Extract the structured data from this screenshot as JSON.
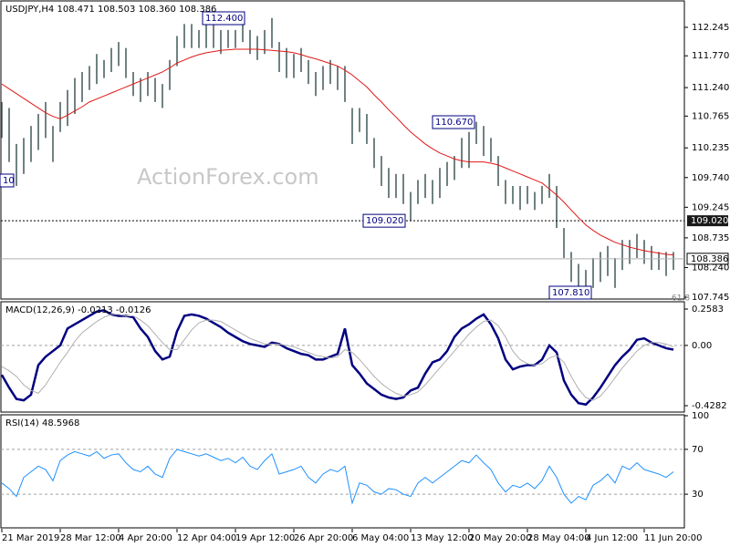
{
  "chart_data": [
    {
      "type": "ohlc",
      "title": "USDJPY,H4  108.471 108.503 108.360 108.386",
      "watermark": "ActionForex.com",
      "color": "#405858",
      "high": [
        111.0,
        110.9,
        110.3,
        110.4,
        110.6,
        110.8,
        111.0,
        110.6,
        111.0,
        111.2,
        111.4,
        111.5,
        111.6,
        111.8,
        111.7,
        111.9,
        112.0,
        111.9,
        111.5,
        111.4,
        111.5,
        111.4,
        111.3,
        111.7,
        112.1,
        112.3,
        112.3,
        112.2,
        112.3,
        112.3,
        112.2,
        112.2,
        112.2,
        112.3,
        112.2,
        112.1,
        112.2,
        112.4,
        112.0,
        111.9,
        111.8,
        111.9,
        111.7,
        111.5,
        111.6,
        111.7,
        111.6,
        111.6,
        110.9,
        110.9,
        110.8,
        110.4,
        110.1,
        109.9,
        109.8,
        109.8,
        109.5,
        109.7,
        109.8,
        109.7,
        109.9,
        110.0,
        110.1,
        110.4,
        110.5,
        110.67,
        110.6,
        110.4,
        110.1,
        109.7,
        109.6,
        109.6,
        109.6,
        109.5,
        109.6,
        109.8,
        109.6,
        108.9,
        108.5,
        108.3,
        108.2,
        108.4,
        108.5,
        108.6,
        108.4,
        108.7,
        108.7,
        108.8,
        108.7,
        108.6,
        108.5,
        108.5,
        108.5
      ],
      "low": [
        110.4,
        110.0,
        109.6,
        109.8,
        110.0,
        110.2,
        110.4,
        110.0,
        110.5,
        110.6,
        110.8,
        111.0,
        111.2,
        111.3,
        111.4,
        111.5,
        111.6,
        111.4,
        111.1,
        111.0,
        111.1,
        111.0,
        110.9,
        111.2,
        111.6,
        111.9,
        111.9,
        111.9,
        111.9,
        111.9,
        111.8,
        111.9,
        111.9,
        112.0,
        111.8,
        111.7,
        111.8,
        111.9,
        111.5,
        111.4,
        111.4,
        111.5,
        111.3,
        111.1,
        111.2,
        111.3,
        111.2,
        111.0,
        110.3,
        110.5,
        110.3,
        109.9,
        109.6,
        109.4,
        109.4,
        109.3,
        109.02,
        109.3,
        109.4,
        109.3,
        109.4,
        109.6,
        109.7,
        109.9,
        109.9,
        110.3,
        110.1,
        110.0,
        109.6,
        109.3,
        109.3,
        109.2,
        109.3,
        109.2,
        109.3,
        109.4,
        108.9,
        108.4,
        108.0,
        107.9,
        107.81,
        107.9,
        108.0,
        108.1,
        107.9,
        108.2,
        108.3,
        108.4,
        108.3,
        108.2,
        108.2,
        108.1,
        108.2
      ],
      "series": [
        {
          "color": "#e01818",
          "values": [
            111.3,
            111.22,
            111.14,
            111.06,
            110.98,
            110.9,
            110.82,
            110.76,
            110.72,
            110.78,
            110.85,
            110.92,
            111.0,
            111.05,
            111.1,
            111.15,
            111.2,
            111.25,
            111.3,
            111.35,
            111.4,
            111.45,
            111.5,
            111.57,
            111.65,
            111.7,
            111.75,
            111.79,
            111.82,
            111.84,
            111.86,
            111.87,
            111.88,
            111.88,
            111.88,
            111.88,
            111.87,
            111.86,
            111.85,
            111.84,
            111.82,
            111.79,
            111.75,
            111.72,
            111.68,
            111.64,
            111.6,
            111.53,
            111.45,
            111.35,
            111.25,
            111.12,
            111.0,
            110.87,
            110.75,
            110.62,
            110.5,
            110.4,
            110.3,
            110.22,
            110.15,
            110.1,
            110.05,
            110.02,
            110.0,
            110.0,
            110.0,
            109.98,
            109.95,
            109.9,
            109.85,
            109.8,
            109.75,
            109.7,
            109.65,
            109.55,
            109.45,
            109.33,
            109.2,
            109.07,
            108.95,
            108.86,
            108.78,
            108.72,
            108.66,
            108.62,
            108.58,
            108.55,
            108.52,
            108.5,
            108.48,
            108.46,
            108.45
          ]
        }
      ],
      "hline": {
        "value": 109.02,
        "label": "109.020"
      },
      "last": {
        "value": 108.386,
        "label": "108.386"
      },
      "annotations": [
        "112.400",
        "110.670",
        "107.810",
        "10",
        "61.8"
      ],
      "ylim": [
        107.715,
        112.67
      ],
      "yticks": [
        {
          "value": 112.245,
          "label": "112.245"
        },
        {
          "value": 111.77,
          "label": "111.770"
        },
        {
          "value": 111.24,
          "label": "111.240"
        },
        {
          "value": 110.765,
          "label": "110.765"
        },
        {
          "value": 110.235,
          "label": "110.235"
        },
        {
          "value": 109.74,
          "label": "109.740"
        },
        {
          "value": 109.245,
          "label": "109.245"
        },
        {
          "value": 108.735,
          "label": "108.735"
        },
        {
          "value": 108.24,
          "label": "108.240"
        },
        {
          "value": 107.745,
          "label": "107.745"
        }
      ]
    },
    {
      "type": "line",
      "title": "MACD(12,26,9) -0.0213 -0.0126",
      "series": [
        {
          "color": "#000080",
          "width": 2.5,
          "values": [
            -0.21,
            -0.3,
            -0.38,
            -0.39,
            -0.35,
            -0.14,
            -0.08,
            -0.04,
            0.0,
            0.12,
            0.15,
            0.18,
            0.21,
            0.24,
            0.25,
            0.22,
            0.21,
            0.21,
            0.2,
            0.12,
            0.06,
            -0.04,
            -0.1,
            -0.08,
            0.1,
            0.21,
            0.22,
            0.21,
            0.19,
            0.16,
            0.13,
            0.09,
            0.06,
            0.03,
            0.01,
            0.0,
            -0.01,
            0.02,
            0.01,
            -0.02,
            -0.04,
            -0.06,
            -0.07,
            -0.1,
            -0.1,
            -0.08,
            -0.06,
            0.12,
            -0.14,
            -0.2,
            -0.27,
            -0.31,
            -0.35,
            -0.37,
            -0.38,
            -0.37,
            -0.32,
            -0.3,
            -0.2,
            -0.12,
            -0.1,
            -0.04,
            0.06,
            0.12,
            0.15,
            0.19,
            0.22,
            0.15,
            0.05,
            -0.1,
            -0.17,
            -0.15,
            -0.14,
            -0.14,
            -0.1,
            0.0,
            -0.05,
            -0.25,
            -0.35,
            -0.41,
            -0.42,
            -0.37,
            -0.3,
            -0.22,
            -0.14,
            -0.08,
            -0.03,
            0.04,
            0.05,
            0.02,
            0.0,
            -0.02,
            -0.03
          ]
        },
        {
          "color": "#b0b0b0",
          "width": 1,
          "values": [
            -0.15,
            -0.18,
            -0.22,
            -0.28,
            -0.32,
            -0.34,
            -0.28,
            -0.2,
            -0.12,
            -0.05,
            0.03,
            0.09,
            0.13,
            0.17,
            0.2,
            0.22,
            0.22,
            0.21,
            0.21,
            0.18,
            0.14,
            0.08,
            0.02,
            -0.03,
            -0.03,
            0.04,
            0.11,
            0.16,
            0.18,
            0.18,
            0.17,
            0.14,
            0.11,
            0.08,
            0.05,
            0.03,
            0.01,
            0.01,
            0.01,
            0.0,
            -0.01,
            -0.03,
            -0.05,
            -0.07,
            -0.08,
            -0.09,
            -0.08,
            -0.03,
            -0.05,
            -0.1,
            -0.16,
            -0.22,
            -0.27,
            -0.31,
            -0.34,
            -0.36,
            -0.35,
            -0.33,
            -0.28,
            -0.22,
            -0.16,
            -0.1,
            -0.04,
            0.02,
            0.08,
            0.13,
            0.17,
            0.18,
            0.14,
            0.06,
            -0.04,
            -0.1,
            -0.13,
            -0.14,
            -0.13,
            -0.09,
            -0.07,
            -0.12,
            -0.22,
            -0.31,
            -0.37,
            -0.39,
            -0.36,
            -0.3,
            -0.23,
            -0.16,
            -0.1,
            -0.04,
            0.0,
            0.02,
            0.02,
            0.01,
            -0.01
          ]
        }
      ],
      "levels": [
        0
      ],
      "ylim": [
        -0.4735,
        0.3036
      ],
      "yticks": [
        0.2583,
        {
          "value": 0,
          "label": "0.00"
        },
        -0.4282
      ]
    },
    {
      "type": "line",
      "title": "RSI(14) 48.5968",
      "series": [
        {
          "color": "#1e90ff",
          "width": 1,
          "values": [
            40,
            35,
            28,
            45,
            50,
            55,
            52,
            42,
            60,
            65,
            68,
            66,
            64,
            68,
            62,
            65,
            66,
            58,
            52,
            50,
            55,
            48,
            45,
            62,
            70,
            68,
            66,
            64,
            66,
            63,
            60,
            62,
            58,
            63,
            55,
            52,
            60,
            66,
            48,
            50,
            52,
            55,
            45,
            40,
            48,
            52,
            50,
            55,
            22,
            40,
            38,
            32,
            30,
            35,
            34,
            30,
            28,
            40,
            45,
            40,
            45,
            50,
            55,
            60,
            58,
            65,
            58,
            52,
            40,
            32,
            38,
            36,
            40,
            35,
            42,
            55,
            45,
            30,
            22,
            28,
            25,
            38,
            42,
            48,
            40,
            55,
            52,
            58,
            52,
            50,
            48,
            45,
            50
          ]
        }
      ],
      "levels": [
        70,
        30
      ],
      "ylim": [
        0,
        100
      ],
      "yticks": [
        100,
        70,
        30
      ],
      "categories": [
        "21 Mar 2019",
        null,
        null,
        null,
        null,
        null,
        null,
        null,
        "28 Mar 12:00",
        null,
        null,
        null,
        null,
        null,
        null,
        null,
        "4 Apr 20:00",
        null,
        null,
        null,
        null,
        null,
        null,
        null,
        "12 Apr 04:00",
        null,
        null,
        null,
        null,
        null,
        null,
        null,
        "19 Apr 12:00",
        null,
        null,
        null,
        null,
        null,
        null,
        null,
        "26 Apr 20:00",
        null,
        null,
        null,
        null,
        null,
        null,
        null,
        "6 May 04:00",
        null,
        null,
        null,
        null,
        null,
        null,
        null,
        "13 May 12:00",
        null,
        null,
        null,
        null,
        null,
        null,
        null,
        "20 May 20:00",
        null,
        null,
        null,
        null,
        null,
        null,
        null,
        "28 May 04:00",
        null,
        null,
        null,
        null,
        null,
        null,
        null,
        "4 Jun 12:00",
        null,
        null,
        null,
        null,
        null,
        null,
        null,
        "11 Jun 20:00",
        null,
        null,
        null,
        null
      ]
    }
  ]
}
